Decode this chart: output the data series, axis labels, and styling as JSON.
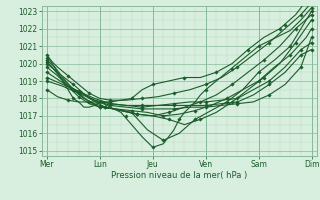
{
  "background_color": "#d8eede",
  "grid_color_minor": "#b8d8c0",
  "grid_color_major": "#88bb99",
  "line_color": "#1a5c2a",
  "marker": "D",
  "markersize": 1.8,
  "linewidth": 0.8,
  "xlabel_text": "Pression niveau de la mer( hPa )",
  "xtick_labels": [
    "Mer",
    "Lun",
    "Jeu",
    "Ven",
    "Sam",
    "Dim"
  ],
  "ytick_min": 1015,
  "ytick_max": 1023,
  "series_dense": [
    {
      "x": [
        0,
        0.05,
        0.1,
        0.2,
        0.3,
        0.4,
        0.5,
        0.6,
        0.7,
        0.8,
        0.9,
        1.0,
        1.2,
        1.4,
        1.6,
        1.8,
        2.0,
        2.1,
        2.2,
        2.3,
        2.4,
        2.5,
        2.6,
        2.7,
        2.8,
        2.9,
        3.0,
        3.2,
        3.4,
        3.6,
        3.8,
        4.0,
        4.2,
        4.4,
        4.6,
        4.8,
        5.0
      ],
      "y": [
        1020.3,
        1020.2,
        1020.0,
        1019.5,
        1019.0,
        1018.5,
        1018.0,
        1017.8,
        1017.5,
        1017.5,
        1017.6,
        1017.8,
        1017.5,
        1017.2,
        1016.5,
        1015.8,
        1015.2,
        1015.3,
        1015.4,
        1015.8,
        1016.2,
        1016.8,
        1017.2,
        1017.5,
        1017.8,
        1018.2,
        1018.5,
        1019.0,
        1019.5,
        1020.0,
        1020.5,
        1021.0,
        1021.3,
        1021.6,
        1021.9,
        1022.5,
        1023.2
      ],
      "markers_x": [
        0,
        0.5,
        1.0,
        1.5,
        2.0,
        2.5,
        3.0,
        3.5,
        4.0,
        4.5,
        5.0
      ],
      "markers_y": [
        1020.3,
        1018.0,
        1017.8,
        1017.0,
        1015.2,
        1016.8,
        1018.5,
        1019.7,
        1021.0,
        1022.2,
        1023.2
      ]
    },
    {
      "x": [
        0,
        0.1,
        0.2,
        0.4,
        0.6,
        0.8,
        1.0,
        1.3,
        1.6,
        1.9,
        2.2,
        2.5,
        2.8,
        3.1,
        3.4,
        3.7,
        4.0,
        4.3,
        4.6,
        4.9,
        5.0
      ],
      "y": [
        1020.1,
        1019.8,
        1019.4,
        1018.8,
        1018.3,
        1017.8,
        1017.5,
        1017.4,
        1017.2,
        1016.2,
        1015.6,
        1016.0,
        1016.8,
        1017.3,
        1017.8,
        1018.5,
        1019.5,
        1020.2,
        1021.0,
        1022.5,
        1023.0
      ],
      "markers_x": [
        0,
        0.6,
        1.0,
        1.6,
        2.2,
        2.8,
        3.4,
        4.0,
        4.6,
        5.0
      ],
      "markers_y": [
        1020.1,
        1018.3,
        1017.5,
        1017.2,
        1015.6,
        1016.8,
        1017.8,
        1019.5,
        1021.0,
        1023.0
      ]
    },
    {
      "x": [
        0,
        0.2,
        0.5,
        0.8,
        1.1,
        1.4,
        1.7,
        2.0,
        2.3,
        2.6,
        2.9,
        3.2,
        3.5,
        3.8,
        4.1,
        4.4,
        4.7,
        5.0
      ],
      "y": [
        1020.0,
        1019.5,
        1018.8,
        1018.0,
        1017.5,
        1017.3,
        1017.1,
        1017.0,
        1016.8,
        1016.5,
        1016.8,
        1017.2,
        1017.8,
        1018.5,
        1019.2,
        1020.0,
        1021.2,
        1022.5
      ],
      "markers_x": [
        0,
        0.5,
        1.1,
        1.7,
        2.3,
        2.9,
        3.5,
        4.1,
        4.7,
        5.0
      ],
      "markers_y": [
        1020.0,
        1018.8,
        1017.5,
        1017.1,
        1016.8,
        1016.8,
        1017.8,
        1019.2,
        1021.2,
        1022.5
      ]
    },
    {
      "x": [
        0,
        0.15,
        0.3,
        0.5,
        0.7,
        0.9,
        1.1,
        1.4,
        1.7,
        2.0,
        2.3,
        2.6,
        2.9,
        3.2,
        3.5,
        3.8,
        4.1,
        4.4,
        4.7,
        5.0
      ],
      "y": [
        1020.2,
        1019.8,
        1019.2,
        1018.5,
        1018.0,
        1017.7,
        1017.5,
        1017.3,
        1017.1,
        1017.0,
        1017.2,
        1017.5,
        1017.8,
        1018.2,
        1018.8,
        1019.5,
        1020.2,
        1021.0,
        1022.0,
        1022.8
      ],
      "markers_x": [
        0,
        0.5,
        1.1,
        1.7,
        2.3,
        2.9,
        3.5,
        4.1,
        4.7,
        5.0
      ],
      "markers_y": [
        1020.2,
        1018.5,
        1017.5,
        1017.1,
        1017.2,
        1017.8,
        1018.8,
        1020.2,
        1022.0,
        1022.8
      ]
    },
    {
      "x": [
        0,
        0.2,
        0.4,
        0.6,
        0.8,
        1.0,
        1.3,
        1.6,
        1.9,
        2.2,
        2.5,
        2.8,
        3.1,
        3.4,
        3.7,
        4.0,
        4.3,
        4.6,
        4.9,
        5.0
      ],
      "y": [
        1019.8,
        1019.3,
        1018.7,
        1018.1,
        1017.7,
        1017.5,
        1017.4,
        1017.3,
        1017.2,
        1017.0,
        1017.1,
        1017.3,
        1017.6,
        1018.0,
        1018.5,
        1019.0,
        1019.8,
        1020.5,
        1021.5,
        1022.0
      ],
      "markers_x": [
        0,
        0.6,
        1.0,
        1.6,
        2.2,
        2.8,
        3.4,
        4.0,
        4.6,
        5.0
      ],
      "markers_y": [
        1019.8,
        1018.1,
        1017.5,
        1017.3,
        1017.0,
        1017.3,
        1018.0,
        1019.0,
        1020.5,
        1022.0
      ]
    },
    {
      "x": [
        0,
        0.3,
        0.6,
        0.9,
        1.2,
        1.5,
        1.8,
        2.1,
        2.4,
        2.7,
        3.0,
        3.3,
        3.6,
        3.9,
        4.2,
        4.5,
        4.8,
        5.0
      ],
      "y": [
        1019.5,
        1018.9,
        1018.4,
        1017.9,
        1017.6,
        1017.5,
        1017.4,
        1017.4,
        1017.4,
        1017.5,
        1017.5,
        1017.6,
        1017.7,
        1017.8,
        1018.2,
        1018.8,
        1019.8,
        1021.5
      ],
      "markers_x": [
        0,
        0.6,
        1.2,
        1.8,
        2.4,
        3.0,
        3.6,
        4.2,
        4.8,
        5.0
      ],
      "markers_y": [
        1019.5,
        1018.4,
        1017.6,
        1017.4,
        1017.4,
        1017.5,
        1017.7,
        1018.2,
        1019.8,
        1021.5
      ]
    },
    {
      "x": [
        0,
        0.3,
        0.6,
        0.9,
        1.2,
        1.5,
        1.8,
        2.1,
        2.4,
        2.7,
        3.0,
        3.3,
        3.6,
        3.9,
        4.2,
        4.5,
        4.8,
        5.0
      ],
      "y": [
        1019.2,
        1018.8,
        1018.4,
        1018.0,
        1017.7,
        1017.6,
        1017.5,
        1017.6,
        1017.7,
        1017.8,
        1017.8,
        1017.9,
        1018.0,
        1018.5,
        1019.0,
        1019.8,
        1020.8,
        1021.2
      ],
      "markers_x": [
        0,
        0.6,
        1.2,
        1.8,
        2.4,
        3.0,
        3.6,
        4.2,
        4.8,
        5.0
      ],
      "markers_y": [
        1019.2,
        1018.4,
        1017.7,
        1017.5,
        1017.7,
        1017.8,
        1018.0,
        1019.0,
        1020.8,
        1021.2
      ]
    },
    {
      "x": [
        0,
        0.3,
        0.6,
        0.9,
        1.2,
        1.5,
        1.8,
        2.1,
        2.4,
        2.7,
        3.0,
        3.3,
        3.6,
        3.9,
        4.2,
        4.5,
        4.8,
        5.0
      ],
      "y": [
        1019.0,
        1018.7,
        1018.3,
        1017.9,
        1017.7,
        1017.6,
        1017.6,
        1017.6,
        1017.6,
        1017.6,
        1017.6,
        1017.7,
        1017.8,
        1018.2,
        1018.8,
        1019.5,
        1020.5,
        1020.8
      ],
      "markers_x": [
        0,
        0.6,
        1.2,
        1.8,
        2.4,
        3.0,
        3.6,
        4.2,
        4.8,
        5.0
      ],
      "markers_y": [
        1019.0,
        1018.3,
        1017.7,
        1017.6,
        1017.6,
        1017.6,
        1017.8,
        1018.8,
        1020.5,
        1020.8
      ]
    },
    {
      "x": [
        0,
        0.1,
        0.2,
        0.4,
        0.6,
        0.8,
        1.0,
        1.2,
        1.4,
        1.6,
        1.8,
        2.0,
        2.3,
        2.6,
        2.9,
        3.2,
        3.5,
        3.8,
        4.1,
        4.4,
        4.7,
        5.0
      ],
      "y": [
        1018.5,
        1018.3,
        1018.1,
        1017.9,
        1017.8,
        1017.8,
        1017.8,
        1017.8,
        1017.9,
        1018.0,
        1018.5,
        1018.8,
        1019.0,
        1019.2,
        1019.2,
        1019.5,
        1020.0,
        1020.8,
        1021.5,
        1022.0,
        1022.8,
        1024.0
      ],
      "markers_x": [
        0,
        0.4,
        0.8,
        1.2,
        1.6,
        2.0,
        2.6,
        3.2,
        3.8,
        4.4,
        5.0
      ],
      "markers_y": [
        1018.5,
        1017.9,
        1017.8,
        1017.8,
        1018.0,
        1018.8,
        1019.2,
        1019.5,
        1020.8,
        1022.0,
        1024.0
      ]
    },
    {
      "x": [
        0,
        0.05,
        0.1,
        0.2,
        0.4,
        0.6,
        0.8,
        1.0,
        1.2,
        1.5,
        1.8,
        2.1,
        2.4,
        2.7,
        3.0,
        3.3,
        3.6,
        3.9,
        4.2,
        4.5,
        4.8,
        5.0
      ],
      "y": [
        1020.5,
        1020.3,
        1020.1,
        1019.8,
        1019.3,
        1018.8,
        1018.3,
        1018.0,
        1017.9,
        1017.9,
        1018.0,
        1018.1,
        1018.3,
        1018.5,
        1018.8,
        1019.2,
        1019.8,
        1020.5,
        1021.2,
        1022.0,
        1022.8,
        1023.5
      ],
      "markers_x": [
        0,
        0.4,
        0.8,
        1.2,
        1.8,
        2.4,
        3.0,
        3.6,
        4.2,
        4.8,
        5.0
      ],
      "markers_y": [
        1020.5,
        1019.3,
        1018.3,
        1017.9,
        1018.0,
        1018.3,
        1018.8,
        1019.8,
        1021.2,
        1022.8,
        1023.5
      ]
    }
  ]
}
